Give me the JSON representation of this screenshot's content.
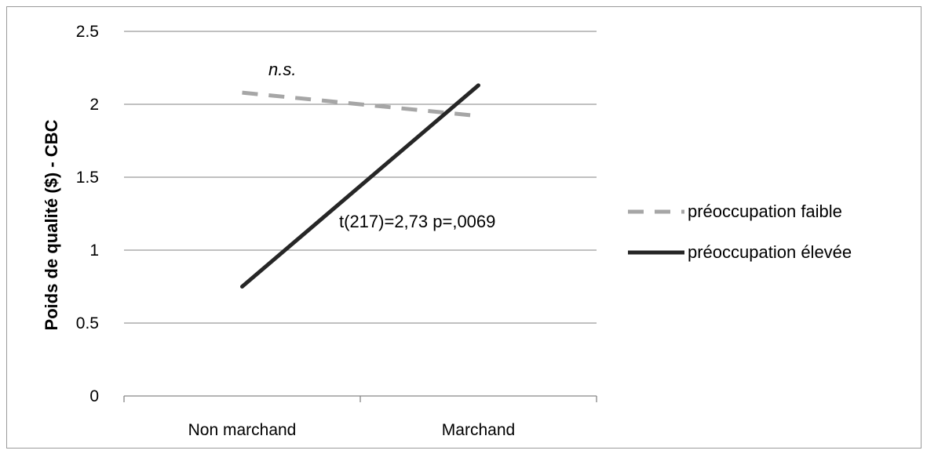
{
  "chart_data": {
    "type": "line",
    "categories": [
      "Non marchand",
      "Marchand"
    ],
    "series": [
      {
        "name": "préoccupation faible",
        "values": [
          2.08,
          1.92
        ],
        "color": "#a6a6a6",
        "dash": "dashed"
      },
      {
        "name": "préoccupation élevée",
        "values": [
          0.75,
          2.13
        ],
        "color": "#262626",
        "dash": "solid"
      }
    ],
    "ylabel": "Poids de qualité ($) - CBC",
    "xlabel": "",
    "ylim": [
      0,
      2.5
    ],
    "yticks": [
      "0",
      "0.5",
      "1",
      "1.5",
      "2",
      "2.5"
    ],
    "grid": true,
    "legend_position": "right",
    "annotations": [
      {
        "text": "n.s.",
        "italic": true,
        "near_series": "préoccupation faible"
      },
      {
        "text": "t(217)=2,73 p=,0069",
        "italic": false,
        "near_series": "préoccupation élevée"
      }
    ]
  }
}
